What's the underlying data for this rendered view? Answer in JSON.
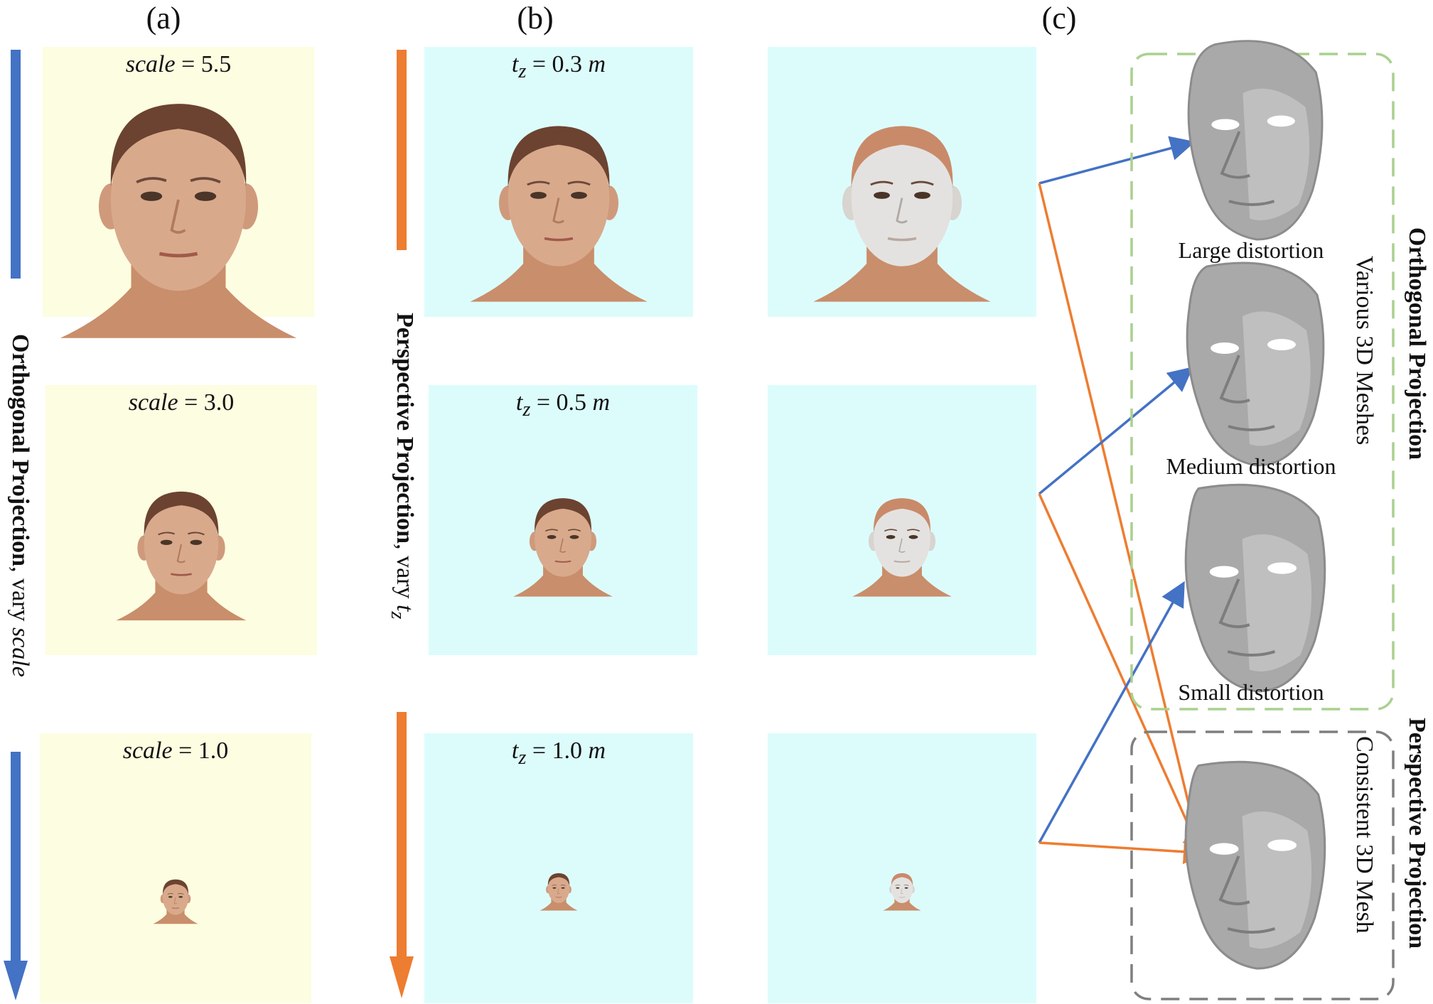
{
  "panels": {
    "a": "(a)",
    "b": "(b)",
    "c": "(c)"
  },
  "column_a": {
    "vertical_label_bold": "Orthogonal Projection",
    "vertical_label_rest": ", vary ",
    "vertical_label_italic": "scale",
    "boxes": [
      {
        "var": "scale",
        "eq": " = 5.5",
        "face_size": 1.0
      },
      {
        "var": "scale",
        "eq": " = 3.0",
        "face_size": 0.55
      },
      {
        "var": "scale",
        "eq": " = 1.0",
        "face_size": 0.19
      }
    ],
    "bg_color": "#fdfde1",
    "arrow_color": "#4472c4"
  },
  "column_b": {
    "vertical_label_bold": "Perspective Projection",
    "vertical_label_rest": ", vary ",
    "vertical_label_italic": "t",
    "vertical_label_sub": "z",
    "boxes": [
      {
        "var": "t",
        "sub": "z",
        "eq": " = 0.3 ",
        "unit": "m",
        "face_size": 0.75
      },
      {
        "var": "t",
        "sub": "z",
        "eq": " = 0.5 ",
        "unit": "m",
        "face_size": 0.42
      },
      {
        "var": "t",
        "sub": "z",
        "eq": " = 1.0 ",
        "unit": "m",
        "face_size": 0.16
      }
    ],
    "bg_color": "#dcfcfc",
    "arrow_color": "#ed7d31"
  },
  "meshes": {
    "labels": [
      "Large distortion",
      "Medium distortion",
      "Small distortion"
    ],
    "group_orth_label": "Various 3D Meshes",
    "group_orth_title": "Orthogonal Projection",
    "group_persp_label": "Consistent 3D Mesh",
    "group_persp_title": "Perspective Projection",
    "orth_border_color": "#a9d18e",
    "persp_border_color": "#7f7f7f"
  }
}
